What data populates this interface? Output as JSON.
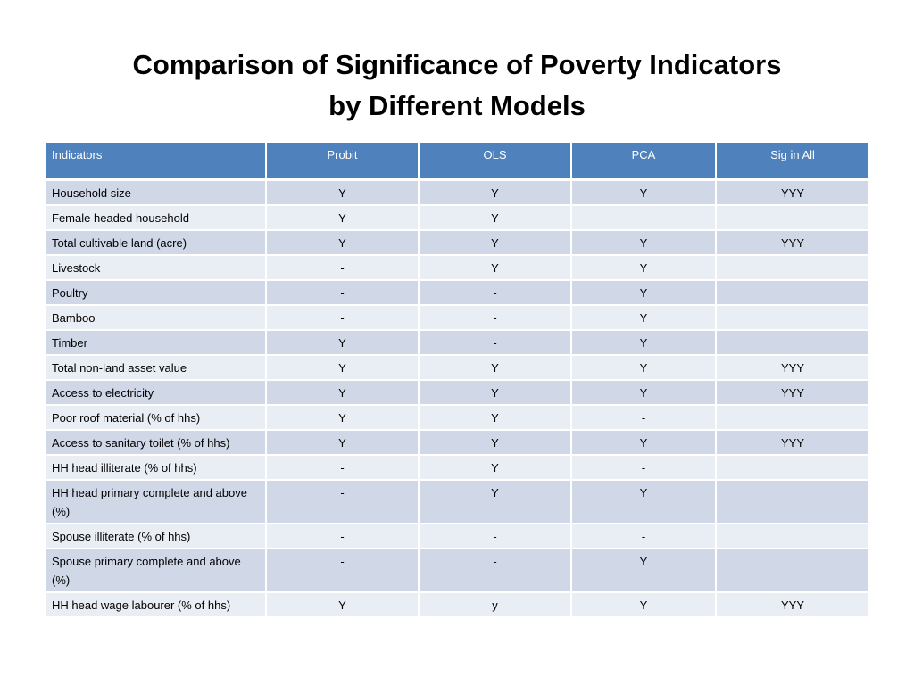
{
  "title": {
    "line1": "Comparison of Significance of Poverty Indicators",
    "line2": "by Different Models"
  },
  "table": {
    "headers": [
      "Indicators",
      "Probit",
      "OLS",
      "PCA",
      "Sig in All"
    ],
    "rows": [
      [
        "Household size",
        "Y",
        "Y",
        "Y",
        "YYY"
      ],
      [
        "Female headed household",
        "Y",
        "Y",
        "-",
        ""
      ],
      [
        "Total cultivable land (acre)",
        "Y",
        "Y",
        "Y",
        "YYY"
      ],
      [
        "Livestock",
        "-",
        "Y",
        "Y",
        ""
      ],
      [
        "Poultry",
        "-",
        "-",
        "Y",
        ""
      ],
      [
        "Bamboo",
        "-",
        "-",
        "Y",
        ""
      ],
      [
        "Timber",
        "Y",
        "-",
        "Y",
        ""
      ],
      [
        "Total non-land asset value",
        "Y",
        "Y",
        "Y",
        "YYY"
      ],
      [
        "Access to electricity",
        "Y",
        "Y",
        "Y",
        "YYY"
      ],
      [
        "Poor roof material (% of hhs)",
        "Y",
        "Y",
        "-",
        ""
      ],
      [
        "Access to sanitary toilet (% of hhs)",
        "Y",
        "Y",
        "Y",
        "YYY"
      ],
      [
        "HH head illiterate (% of hhs)",
        "-",
        "Y",
        "-",
        ""
      ],
      [
        "HH head primary complete and above (%)",
        "-",
        "Y",
        "Y",
        ""
      ],
      [
        "Spouse illiterate (% of hhs)",
        "-",
        "-",
        "-",
        ""
      ],
      [
        "Spouse primary complete and above (%)",
        "-",
        "-",
        "Y",
        ""
      ],
      [
        "HH head wage labourer (% of hhs)",
        "Y",
        "y",
        "Y",
        "YYY"
      ]
    ]
  },
  "colors": {
    "header_bg": "#4f81bd",
    "row_odd_bg": "#d0d8e8",
    "row_even_bg": "#e9edf4"
  }
}
